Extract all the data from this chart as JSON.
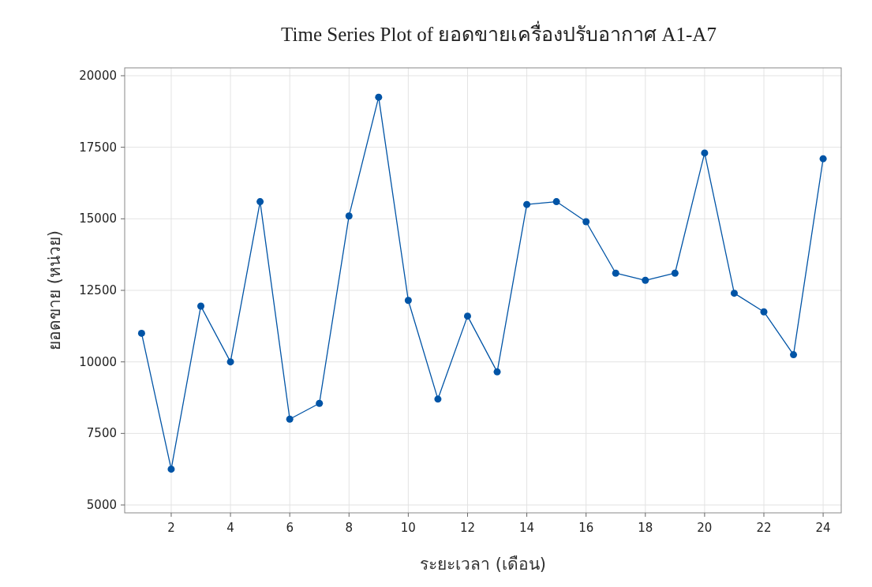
{
  "chart_data": {
    "type": "line",
    "title": "Time Series Plot of ยอดขายเครื่องปรับอากาศ A1-A7",
    "xlabel": "ระยะเวลา (เดือน)",
    "ylabel": "ยอดขาย (หน่วย)",
    "x": [
      1,
      2,
      3,
      4,
      5,
      6,
      7,
      8,
      9,
      10,
      11,
      12,
      13,
      14,
      15,
      16,
      17,
      18,
      19,
      20,
      21,
      22,
      23,
      24
    ],
    "series": [
      {
        "color": "#0054a6",
        "values": [
          11000,
          6250,
          11950,
          10000,
          15600,
          8000,
          8550,
          15100,
          19250,
          12150,
          8700,
          11600,
          9650,
          15500,
          15600,
          14900,
          13100,
          12850,
          13100,
          17300,
          12400,
          11750,
          10250,
          17100
        ]
      }
    ],
    "xlim": [
      0.43,
      24.61
    ],
    "ylim": [
      4725,
      20275
    ],
    "xticks": [
      2,
      4,
      6,
      8,
      10,
      12,
      14,
      16,
      18,
      20,
      22,
      24
    ],
    "yticks": [
      5000,
      7500,
      10000,
      12500,
      15000,
      17500,
      20000
    ],
    "grid": true,
    "marker": "circle",
    "line_style": "solid"
  }
}
